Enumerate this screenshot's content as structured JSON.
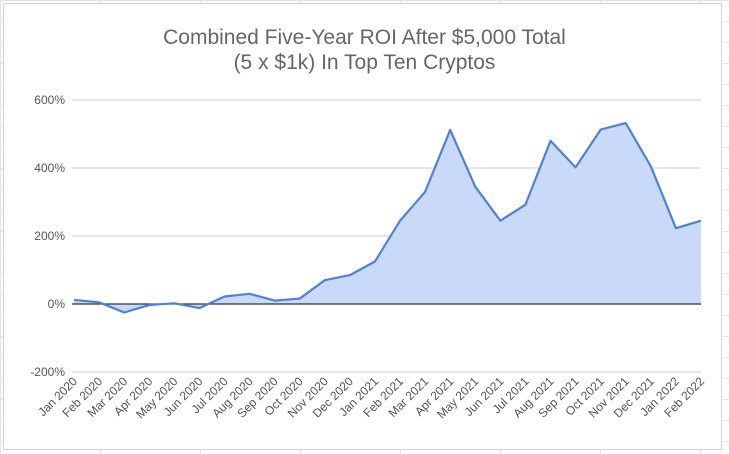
{
  "chart_data": {
    "type": "area",
    "title_lines": [
      "Combined Five-Year ROI After $5,000 Total",
      "(5 x $1k) In Top Ten Cryptos"
    ],
    "xlabel": "",
    "ylabel": "",
    "ylim": [
      -200,
      600
    ],
    "yticks": [
      600,
      400,
      200,
      0,
      -200
    ],
    "ytick_labels": [
      "600%",
      "400%",
      "200%",
      "0%",
      "-200%"
    ],
    "categories": [
      "Jan 2020",
      "Feb 2020",
      "Mar 2020",
      "Apr 2020",
      "May 2020",
      "Jun 2020",
      "Jul 2020",
      "Aug 2020",
      "Sep 2020",
      "Oct 2020",
      "Nov 2020",
      "Dec 2020",
      "Jan 2021",
      "Feb 2021",
      "Mar 2021",
      "Apr 2021",
      "May 2021",
      "Jun 2021",
      "Jul 2021",
      "Aug 2021",
      "Sep 2021",
      "Oct 2021",
      "Nov 2021",
      "Dec 2021",
      "Jan 2022",
      "Feb 2022"
    ],
    "series": [
      {
        "values": [
          12,
          5,
          -25,
          -3,
          2,
          -12,
          22,
          30,
          10,
          16,
          70,
          85,
          125,
          245,
          330,
          512,
          345,
          245,
          292,
          480,
          402,
          513,
          532,
          405,
          223,
          245
        ],
        "line_color": "#5081d8",
        "fill_color": "#c9daf8"
      }
    ],
    "grid": true,
    "legend": "none"
  }
}
